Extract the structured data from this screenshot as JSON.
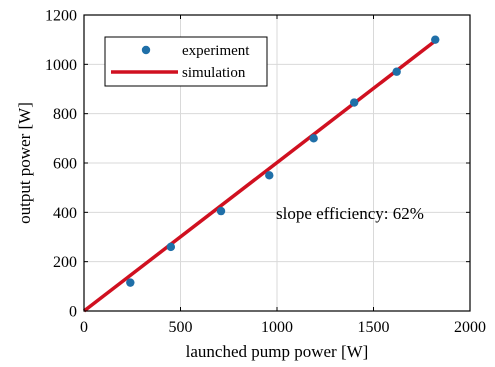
{
  "chart_data": {
    "type": "scatter",
    "xlabel": "launched pump power [W]",
    "ylabel": "output power [W]",
    "xlim": [
      0,
      2000
    ],
    "ylim": [
      0,
      1200
    ],
    "x_ticks": [
      0,
      500,
      1000,
      1500,
      2000
    ],
    "y_ticks": [
      0,
      200,
      400,
      600,
      800,
      1000,
      1200
    ],
    "grid": true,
    "legend_position": "top-left",
    "annotation": "slope efficiency: 62%",
    "series": [
      {
        "name": "experiment",
        "kind": "scatter",
        "color": "#1f6fa8",
        "x": [
          240,
          450,
          710,
          960,
          1190,
          1400,
          1620,
          1820
        ],
        "y": [
          115,
          260,
          405,
          550,
          700,
          845,
          970,
          1100
        ]
      },
      {
        "name": "simulation",
        "kind": "line",
        "color": "#d01020",
        "x": [
          0,
          1820
        ],
        "y": [
          0,
          1095
        ]
      }
    ]
  }
}
